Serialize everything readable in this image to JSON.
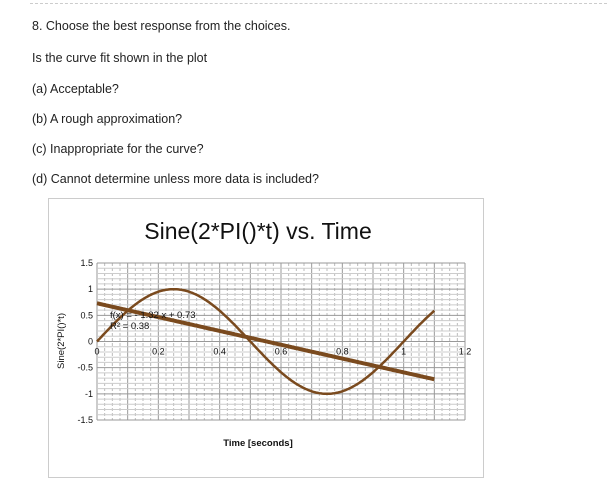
{
  "question": {
    "title": "8. Choose the best response from the choices.",
    "prompt": "Is the curve fit shown in the plot",
    "options": [
      "(a) Acceptable?",
      "(b) A rough approximation?",
      "(c) Inappropriate for the curve?",
      "(d) Cannot determine unless more data is included?"
    ]
  },
  "chart_data": {
    "type": "line",
    "title": "Sine(2*PI()*t) vs. Time",
    "xlabel": "Time [seconds]",
    "ylabel": "Sine(2*PI()*t)",
    "xlim": [
      0,
      1.2
    ],
    "ylim": [
      -1.5,
      1.5
    ],
    "xticks": [
      "0",
      "0.2",
      "0.4",
      "0.6",
      "0.8",
      "1",
      "1.2"
    ],
    "yticks": [
      "1.5",
      "1",
      "0.5",
      "0",
      "-0.5",
      "-1",
      "-1.5"
    ],
    "grid": true,
    "series": [
      {
        "function": "sin(2*pi*t)",
        "t_range": [
          0,
          1.1
        ],
        "color": "#7a4a1e"
      },
      {
        "function": "-1.32*t + 0.73",
        "t_range": [
          0,
          1.1
        ],
        "color": "#7a4a1e",
        "kind": "linear trendline"
      }
    ],
    "annotations": [
      "f(x) = - 1.32 x + 0.73",
      "R² = 0.38"
    ]
  }
}
